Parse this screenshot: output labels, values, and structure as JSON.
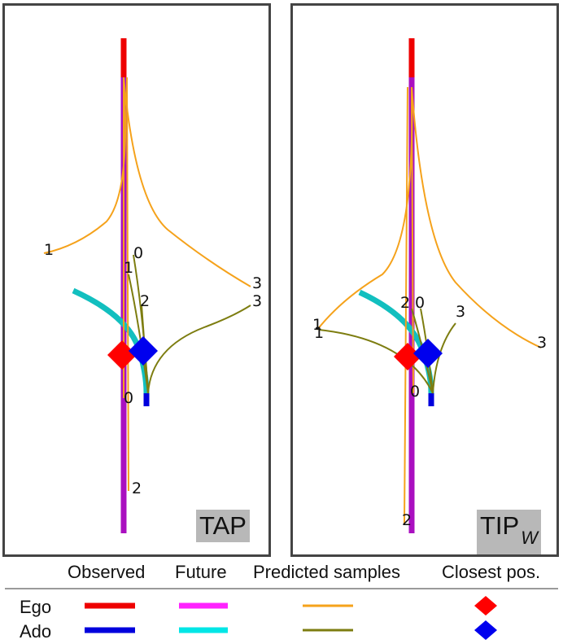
{
  "panels": [
    {
      "tag": "TAP",
      "tag_sub": ""
    },
    {
      "tag": "TIP",
      "tag_sub": "W"
    }
  ],
  "sample_labels": {
    "tap": [
      "1",
      "0",
      "1",
      "2",
      "3",
      "3",
      "0",
      "2"
    ],
    "tip": [
      "1",
      "1",
      "2",
      "0",
      "3",
      "3",
      "0",
      "2"
    ]
  },
  "legend": {
    "columns": [
      "Observed",
      "Future",
      "Predicted samples",
      "Closest pos."
    ],
    "rows": [
      "Ego",
      "Ado"
    ]
  },
  "colors": {
    "ego_observed": "#ee0000",
    "ego_future": "#ff22ff",
    "ego_predicted": "#f5a21b",
    "ego_closest": "#ff0000",
    "ado_observed": "#0000dd",
    "ado_future": "#00e6e6",
    "ado_predicted": "#7d7d10",
    "ado_closest": "#0000ee",
    "ego_observed_panel": "#ee0000",
    "ego_future_panel": "#aa10c0",
    "ado_future_panel": "#12bfbf"
  }
}
